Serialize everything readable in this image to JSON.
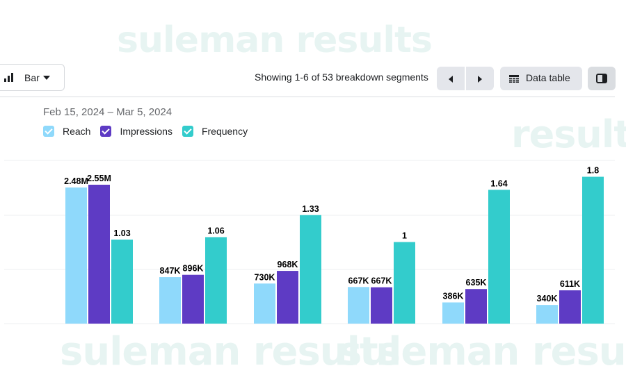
{
  "watermarks": [
    "suleman results",
    "result",
    "suleman results",
    "suleman results"
  ],
  "toolbar": {
    "chart_type_label": "Bar",
    "segments_text": "Showing 1-6 of 53 breakdown segments",
    "data_table_label": "Data table"
  },
  "date_range": "Feb 15, 2024 – Mar 5, 2024",
  "colors": {
    "reach": "#8fd9fb",
    "impressions": "#5e3bc4",
    "frequency": "#33cccc",
    "grid": "#eeeff1"
  },
  "chart_data": {
    "type": "bar",
    "title": "",
    "xlabel": "",
    "ylabel": "",
    "grid": true,
    "legend_position": "top-left",
    "categories": [
      "",
      "",
      "",
      "",
      "",
      ""
    ],
    "series": [
      {
        "name": "Reach",
        "color": "#8fd9fb",
        "values": [
          2480000,
          847000,
          730000,
          667000,
          386000,
          340000
        ],
        "labels": [
          "2.48M",
          "847K",
          "730K",
          "667K",
          "386K",
          "340K"
        ]
      },
      {
        "name": "Impressions",
        "color": "#5e3bc4",
        "values": [
          2550000,
          896000,
          968000,
          667000,
          635000,
          611000
        ],
        "labels": [
          "2.55M",
          "896K",
          "968K",
          "667K",
          "635K",
          "611K"
        ]
      },
      {
        "name": "Frequency",
        "color": "#33cccc",
        "values": [
          1.03,
          1.06,
          1.33,
          1,
          1.64,
          1.8
        ],
        "labels": [
          "1.03",
          "1.06",
          "1.33",
          "1",
          "1.64",
          "1.8"
        ]
      }
    ]
  }
}
